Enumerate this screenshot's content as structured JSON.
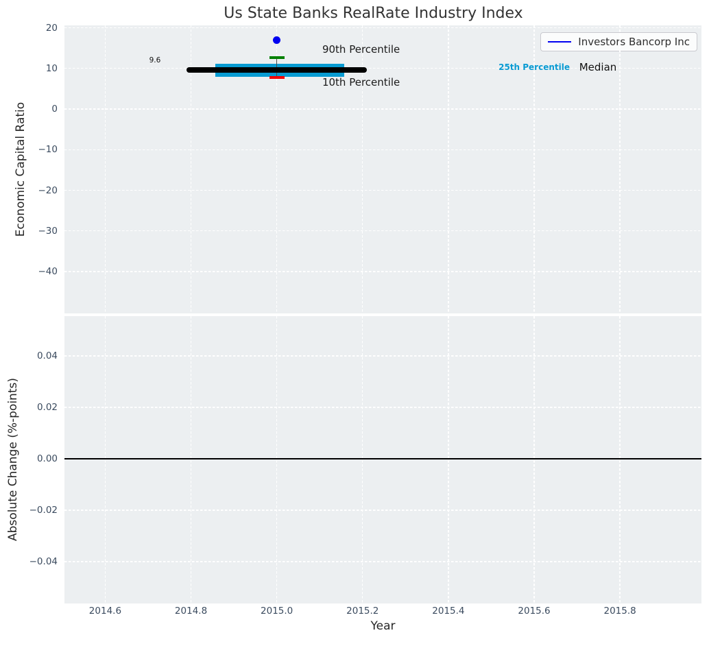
{
  "figure": {
    "title": "Us State Banks RealRate Industry Index",
    "background_color": "#ffffff",
    "plot_background_color": "#eceff1",
    "grid_color": "#ffffff",
    "tick_label_color": "#3a4a5e"
  },
  "legend": {
    "label": "Investors Bancorp Inc",
    "line_color": "#0000f0",
    "position": "upper right"
  },
  "chart_data": [
    {
      "type": "scatter",
      "title": "Us State Banks RealRate Industry Index",
      "xlabel": "",
      "ylabel": "Economic Capital Ratio",
      "xlim": [
        2014.505,
        2015.99
      ],
      "ylim": [
        -50.3,
        20.6
      ],
      "grid": "white dashed, on",
      "legend_position": "upper right",
      "xticks": [
        {
          "v": 2014.6,
          "label": "2014.6"
        },
        {
          "v": 2014.8,
          "label": "2014.8"
        },
        {
          "v": 2015.0,
          "label": "2015.0"
        },
        {
          "v": 2015.2,
          "label": "2015.2"
        },
        {
          "v": 2015.4,
          "label": "2015.4"
        },
        {
          "v": 2015.6,
          "label": "2015.6"
        },
        {
          "v": 2015.8,
          "label": "2015.8"
        }
      ],
      "yticks": [
        {
          "v": 20,
          "label": "20"
        },
        {
          "v": 10,
          "label": "10"
        },
        {
          "v": 0,
          "label": "0"
        },
        {
          "v": -10,
          "label": "−10"
        },
        {
          "v": -20,
          "label": "−20"
        },
        {
          "v": -30,
          "label": "−30"
        },
        {
          "v": -40,
          "label": "−40"
        }
      ],
      "series": [
        {
          "name": "Investors Bancorp Inc",
          "type": "point",
          "x": 2015.0,
          "y": 17.0,
          "color": "#0000f0"
        }
      ],
      "percentile_stats": {
        "p90": 12.7,
        "p75": 11.2,
        "median": 9.6,
        "p25": 8.0,
        "p10": 7.8,
        "center_x": 2015.0,
        "median_span": [
          2014.79,
          2015.21
        ],
        "iqr_span": [
          2014.857,
          2015.157
        ],
        "median_color": "#000000",
        "iqr_color": "#089bd2",
        "p90_color": "#008000",
        "p10_color": "#f40000",
        "whisker_color": "#4a4a4a"
      },
      "annotations": [
        {
          "text": "9.6",
          "x": 2014.716,
          "y": 11.65,
          "color": "#111111",
          "size": 10.5,
          "weight": "normal",
          "ha": "center"
        },
        {
          "text": "90th Percentile",
          "x": 2015.106,
          "y": 14.35,
          "color": "#1a1a1a",
          "size": 15,
          "weight": "normal",
          "ha": "left"
        },
        {
          "text": "10th Percentile",
          "x": 2015.106,
          "y": 6.25,
          "color": "#1a1a1a",
          "size": 15,
          "weight": "normal",
          "ha": "left"
        },
        {
          "text": "25th Percentile",
          "x": 2015.517,
          "y": 10.05,
          "color": "#0a9bd3",
          "size": 12,
          "weight": "bold",
          "ha": "left"
        },
        {
          "text": "Median",
          "x": 2015.705,
          "y": 10.0,
          "color": "#111111",
          "size": 15,
          "weight": "normal",
          "ha": "left"
        }
      ]
    },
    {
      "type": "line",
      "title": "",
      "xlabel": "Year",
      "ylabel": "Absolute Change (%-points)",
      "xlim": [
        2014.505,
        2015.99
      ],
      "ylim": [
        -0.0563,
        0.0555
      ],
      "grid": "white dashed, on",
      "xticks": [
        {
          "v": 2014.6,
          "label": "2014.6"
        },
        {
          "v": 2014.8,
          "label": "2014.8"
        },
        {
          "v": 2015.0,
          "label": "2015.0"
        },
        {
          "v": 2015.2,
          "label": "2015.2"
        },
        {
          "v": 2015.4,
          "label": "2015.4"
        },
        {
          "v": 2015.6,
          "label": "2015.6"
        },
        {
          "v": 2015.8,
          "label": "2015.8"
        }
      ],
      "yticks": [
        {
          "v": 0.04,
          "label": "0.04"
        },
        {
          "v": 0.02,
          "label": "0.02"
        },
        {
          "v": 0.0,
          "label": "0.00"
        },
        {
          "v": -0.02,
          "label": "−0.02"
        },
        {
          "v": -0.04,
          "label": "−0.04"
        }
      ],
      "series": [],
      "zero_line": {
        "y": 0.0,
        "color": "#000000",
        "width": 2
      }
    }
  ]
}
